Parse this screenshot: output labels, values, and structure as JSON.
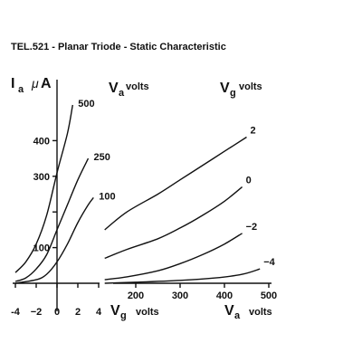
{
  "chart_data": {
    "title": "TEL.521 - Planar Triode  - Static Characteristic",
    "y_axis": {
      "symbol": "I",
      "subscript": "a",
      "unit_symbol": "μ",
      "unit": "A",
      "range": [
        0,
        500
      ],
      "ticks": [
        {
          "value": 100,
          "label": "100"
        },
        {
          "value": 200,
          "label": ""
        },
        {
          "value": 300,
          "label": "300"
        },
        {
          "value": 400,
          "label": "400"
        }
      ]
    },
    "left_panel": {
      "type": "line",
      "x_axis": {
        "symbol": "V",
        "subscript": "g",
        "unit": "volts",
        "range": [
          -4,
          4
        ],
        "ticks": [
          {
            "value": -4,
            "label": "-4"
          },
          {
            "value": -2,
            "label": "−2"
          },
          {
            "value": 0,
            "label": "0"
          },
          {
            "value": 2,
            "label": "2"
          },
          {
            "value": 4,
            "label": "4"
          }
        ]
      },
      "parameter_label": {
        "symbol": "V",
        "subscript": "a",
        "unit": "volts"
      },
      "series": [
        {
          "name": "500",
          "points": [
            [
              -4,
              30
            ],
            [
              -3,
              60
            ],
            [
              -2,
              110
            ],
            [
              -1,
              190
            ],
            [
              0,
              310
            ],
            [
              1,
              420
            ],
            [
              1.5,
              500
            ]
          ]
        },
        {
          "name": "250",
          "points": [
            [
              -4,
              5
            ],
            [
              -3,
              15
            ],
            [
              -2,
              40
            ],
            [
              -1,
              80
            ],
            [
              0,
              150
            ],
            [
              1,
              220
            ],
            [
              2,
              290
            ],
            [
              3,
              350
            ]
          ]
        },
        {
          "name": "100",
          "points": [
            [
              -4,
              0
            ],
            [
              -2,
              10
            ],
            [
              -1,
              25
            ],
            [
              0,
              60
            ],
            [
              1,
              110
            ],
            [
              2,
              170
            ],
            [
              3,
              220
            ],
            [
              3.5,
              240
            ]
          ]
        }
      ]
    },
    "right_panel": {
      "type": "line",
      "x_axis": {
        "symbol": "V",
        "subscript": "a",
        "unit": "volts",
        "range": [
          110,
          520
        ],
        "ticks": [
          {
            "value": 200,
            "label": "200"
          },
          {
            "value": 300,
            "label": "300"
          },
          {
            "value": 400,
            "label": "400"
          },
          {
            "value": 500,
            "label": "500"
          }
        ]
      },
      "parameter_label": {
        "symbol": "V",
        "subscript": "g",
        "unit": "volts"
      },
      "series": [
        {
          "name": "2",
          "points": [
            [
              130,
              150
            ],
            [
              180,
              200
            ],
            [
              250,
              250
            ],
            [
              300,
              290
            ],
            [
              350,
              330
            ],
            [
              400,
              370
            ],
            [
              450,
              410
            ]
          ]
        },
        {
          "name": "0",
          "points": [
            [
              130,
              70
            ],
            [
              180,
              95
            ],
            [
              250,
              125
            ],
            [
              300,
              155
            ],
            [
              350,
              190
            ],
            [
              400,
              230
            ],
            [
              440,
              270
            ]
          ]
        },
        {
          "name": "−2",
          "points": [
            [
              130,
              10
            ],
            [
              180,
              18
            ],
            [
              250,
              35
            ],
            [
              300,
              55
            ],
            [
              350,
              80
            ],
            [
              400,
              110
            ],
            [
              440,
              140
            ]
          ]
        },
        {
          "name": "−4",
          "points": [
            [
              130,
              0
            ],
            [
              200,
              3
            ],
            [
              300,
              8
            ],
            [
              380,
              15
            ],
            [
              440,
              25
            ],
            [
              480,
              40
            ]
          ]
        }
      ]
    }
  }
}
